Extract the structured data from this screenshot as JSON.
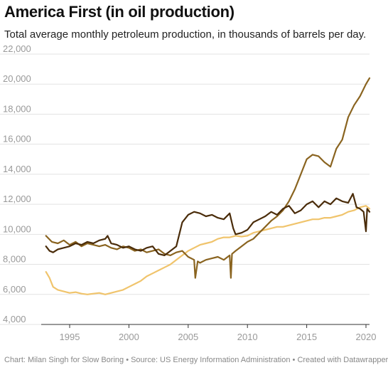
{
  "title": "America First (in oil production)",
  "subtitle": "Total average monthly petroleum production, in thousands of barrels per day.",
  "footer": "Chart: Milan Singh for Slow Boring • Source: US Energy Information Administration • Created with Datawrapper",
  "colors": {
    "series1": "#4a2c0a",
    "series2": "#8a6420",
    "series3": "#f0c46c",
    "grid": "#e3e3e3",
    "axis": "#333333"
  },
  "chart_data": {
    "type": "line",
    "title": "America First (in oil production)",
    "xlabel": "",
    "ylabel": "",
    "xlim": [
      1992.6,
      2020.3
    ],
    "ylim": [
      4000,
      22000
    ],
    "grid": true,
    "x_ticks": [
      "1995",
      "2000",
      "2005",
      "2010",
      "2015",
      "2020"
    ],
    "y_ticks": [
      "4,000",
      "6,000",
      "8,000",
      "10,000",
      "12,000",
      "14,000",
      "16,000",
      "18,000",
      "20,000",
      "22,000"
    ],
    "series": [
      {
        "x": [
          1993.0,
          1993.3,
          1993.6,
          1994.0,
          1994.5,
          1995.0,
          1995.5,
          1996.0,
          1996.5,
          1997.0,
          1997.5,
          1998.0,
          1998.2,
          1998.5,
          1999.0,
          1999.5,
          2000.0,
          2000.5,
          2001.0,
          2001.5,
          2002.0,
          2002.5,
          2003.0,
          2003.5,
          2004.0,
          2004.5,
          2005.0,
          2005.5,
          2006.0,
          2006.5,
          2007.0,
          2007.5,
          2008.0,
          2008.5,
          2008.8,
          2009.0,
          2009.5,
          2010.0,
          2010.5,
          2011.0,
          2011.5,
          2012.0,
          2012.5,
          2013.0,
          2013.5,
          2014.0,
          2014.5,
          2015.0,
          2015.5,
          2016.0,
          2016.5,
          2017.0,
          2017.5,
          2018.0,
          2018.5,
          2018.9,
          2019.2,
          2019.5,
          2019.8,
          2020.0,
          2020.1,
          2020.3
        ],
        "y": [
          9200,
          8900,
          8800,
          9000,
          9100,
          9200,
          9400,
          9300,
          9500,
          9400,
          9600,
          9700,
          9900,
          9400,
          9300,
          9100,
          9200,
          9000,
          8900,
          9100,
          9200,
          8700,
          8600,
          8900,
          9200,
          10800,
          11300,
          11500,
          11400,
          11200,
          11300,
          11100,
          11000,
          11400,
          10400,
          10000,
          10100,
          10300,
          10800,
          11000,
          11200,
          11500,
          11300,
          11700,
          11900,
          11400,
          11600,
          12000,
          12200,
          11800,
          12200,
          12000,
          12400,
          12200,
          12100,
          12700,
          11800,
          11700,
          11500,
          10200,
          11700,
          11500
        ]
      },
      {
        "x": [
          1993.0,
          1993.5,
          1994.0,
          1994.5,
          1995.0,
          1995.5,
          1996.0,
          1996.5,
          1997.0,
          1997.5,
          1998.0,
          1998.5,
          1999.0,
          1999.5,
          2000.0,
          2000.5,
          2001.0,
          2001.5,
          2002.0,
          2002.5,
          2003.0,
          2003.5,
          2004.0,
          2004.5,
          2005.0,
          2005.5,
          2005.6,
          2005.8,
          2006.0,
          2006.5,
          2007.0,
          2007.5,
          2008.0,
          2008.5,
          2008.6,
          2008.7,
          2009.0,
          2009.5,
          2010.0,
          2010.5,
          2011.0,
          2011.5,
          2012.0,
          2012.5,
          2013.0,
          2013.5,
          2014.0,
          2014.5,
          2015.0,
          2015.5,
          2016.0,
          2016.5,
          2017.0,
          2017.5,
          2018.0,
          2018.5,
          2019.0,
          2019.5,
          2020.0,
          2020.3
        ],
        "y": [
          9900,
          9500,
          9400,
          9600,
          9300,
          9500,
          9200,
          9400,
          9300,
          9200,
          9300,
          9100,
          9000,
          9200,
          9100,
          8900,
          9000,
          8800,
          8900,
          9000,
          8700,
          8600,
          8800,
          8900,
          8500,
          8300,
          7100,
          8200,
          8100,
          8300,
          8400,
          8500,
          8300,
          8600,
          7100,
          8700,
          8900,
          9200,
          9500,
          9700,
          10100,
          10500,
          10900,
          11200,
          11600,
          12200,
          13000,
          14000,
          15000,
          15300,
          15200,
          14800,
          14500,
          15700,
          16300,
          17800,
          18600,
          19200,
          20000,
          20400
        ]
      },
      {
        "x": [
          1993.0,
          1993.3,
          1993.6,
          1994.0,
          1994.5,
          1995.0,
          1995.5,
          1996.0,
          1996.5,
          1997.0,
          1997.5,
          1998.0,
          1998.5,
          1999.0,
          1999.5,
          2000.0,
          2000.5,
          2001.0,
          2001.5,
          2002.0,
          2002.5,
          2003.0,
          2003.5,
          2004.0,
          2004.5,
          2005.0,
          2005.5,
          2006.0,
          2006.5,
          2007.0,
          2007.5,
          2008.0,
          2008.5,
          2009.0,
          2009.5,
          2010.0,
          2010.5,
          2011.0,
          2011.5,
          2012.0,
          2012.5,
          2013.0,
          2013.5,
          2014.0,
          2014.5,
          2015.0,
          2015.5,
          2016.0,
          2016.5,
          2017.0,
          2017.5,
          2018.0,
          2018.5,
          2019.0,
          2019.5,
          2020.0,
          2020.3
        ],
        "y": [
          7500,
          7100,
          6500,
          6300,
          6200,
          6100,
          6150,
          6050,
          6000,
          6050,
          6100,
          6000,
          6100,
          6200,
          6300,
          6500,
          6700,
          6900,
          7200,
          7400,
          7600,
          7800,
          8000,
          8300,
          8600,
          8900,
          9100,
          9300,
          9400,
          9500,
          9700,
          9800,
          9800,
          9900,
          9850,
          9900,
          10100,
          10200,
          10300,
          10400,
          10500,
          10500,
          10600,
          10700,
          10800,
          10900,
          11000,
          11000,
          11100,
          11100,
          11200,
          11300,
          11500,
          11600,
          11800,
          11900,
          11700
        ]
      }
    ]
  }
}
